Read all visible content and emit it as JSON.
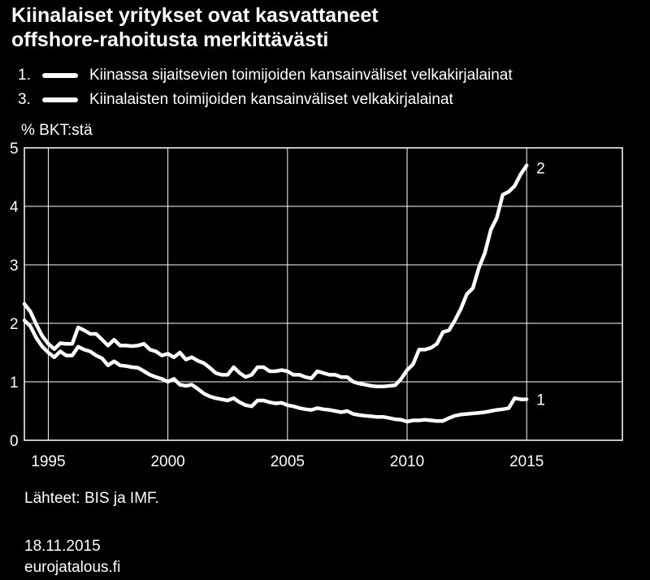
{
  "title_line1": "Kiinalaiset yritykset ovat kasvattaneet",
  "title_line2": "offshore-rahoitusta merkittävästi",
  "legend": [
    {
      "num": "1.",
      "label": "Kiinassa sijaitsevien toimijoiden kansainväliset velkakirjalainat"
    },
    {
      "num": "3.",
      "label": "Kiinalaisten toimijoiden kansainväliset velkakirjalainat"
    }
  ],
  "unit_label": "% BKT:stä",
  "source": "Lähteet: BIS ja IMF.",
  "date": "18.11.2015",
  "site": "eurojatalous.fi",
  "line_color": "#ffffff",
  "background_color": "#000000",
  "chart_data": {
    "type": "line",
    "title": "",
    "xlabel": "",
    "ylabel": "% BKT:stä",
    "xlim": [
      1994.0,
      2019.0
    ],
    "ylim": [
      0,
      5
    ],
    "xticks": [
      1995,
      2000,
      2005,
      2010,
      2015
    ],
    "yticks": [
      0,
      1,
      2,
      3,
      4,
      5
    ],
    "grid": true,
    "series": [
      {
        "name": "1",
        "x": [
          1994.0,
          1994.25,
          1994.5,
          1994.75,
          1995.0,
          1995.25,
          1995.5,
          1995.75,
          1996.0,
          1996.25,
          1996.5,
          1996.75,
          1997.0,
          1997.25,
          1997.5,
          1997.75,
          1998.0,
          1998.25,
          1998.5,
          1998.75,
          1999.0,
          1999.25,
          1999.5,
          1999.75,
          2000.0,
          2000.25,
          2000.5,
          2000.75,
          2001.0,
          2001.25,
          2001.5,
          2001.75,
          2002.0,
          2002.25,
          2002.5,
          2002.75,
          2003.0,
          2003.25,
          2003.5,
          2003.75,
          2004.0,
          2004.25,
          2004.5,
          2004.75,
          2005.0,
          2005.25,
          2005.5,
          2005.75,
          2006.0,
          2006.25,
          2006.5,
          2006.75,
          2007.0,
          2007.25,
          2007.5,
          2007.75,
          2008.0,
          2008.25,
          2008.5,
          2008.75,
          2009.0,
          2009.25,
          2009.5,
          2009.75,
          2010.0,
          2010.25,
          2010.5,
          2010.75,
          2011.0,
          2011.25,
          2011.5,
          2011.75,
          2012.0,
          2012.25,
          2012.5,
          2012.75,
          2013.0,
          2013.25,
          2013.5,
          2013.75,
          2014.0,
          2014.25,
          2014.5,
          2014.75,
          2015.0
        ],
        "values": [
          2.05,
          1.95,
          1.75,
          1.6,
          1.5,
          1.42,
          1.52,
          1.45,
          1.45,
          1.6,
          1.55,
          1.52,
          1.45,
          1.4,
          1.28,
          1.35,
          1.28,
          1.27,
          1.25,
          1.24,
          1.18,
          1.12,
          1.08,
          1.05,
          1.0,
          1.05,
          0.95,
          0.93,
          0.95,
          0.88,
          0.8,
          0.75,
          0.72,
          0.7,
          0.68,
          0.72,
          0.65,
          0.6,
          0.58,
          0.68,
          0.68,
          0.65,
          0.63,
          0.64,
          0.6,
          0.58,
          0.55,
          0.53,
          0.52,
          0.55,
          0.53,
          0.52,
          0.5,
          0.48,
          0.5,
          0.45,
          0.43,
          0.42,
          0.41,
          0.4,
          0.4,
          0.38,
          0.36,
          0.35,
          0.32,
          0.34,
          0.34,
          0.35,
          0.34,
          0.33,
          0.33,
          0.38,
          0.42,
          0.44,
          0.45,
          0.46,
          0.47,
          0.48,
          0.5,
          0.52,
          0.53,
          0.55,
          0.72,
          0.7,
          0.7
        ]
      },
      {
        "name": "2",
        "x": [
          1994.0,
          1994.25,
          1994.5,
          1994.75,
          1995.0,
          1995.25,
          1995.5,
          1995.75,
          1996.0,
          1996.25,
          1996.5,
          1996.75,
          1997.0,
          1997.25,
          1997.5,
          1997.75,
          1998.0,
          1998.25,
          1998.5,
          1998.75,
          1999.0,
          1999.25,
          1999.5,
          1999.75,
          2000.0,
          2000.25,
          2000.5,
          2000.75,
          2001.0,
          2001.25,
          2001.5,
          2001.75,
          2002.0,
          2002.25,
          2002.5,
          2002.75,
          2003.0,
          2003.25,
          2003.5,
          2003.75,
          2004.0,
          2004.25,
          2004.5,
          2004.75,
          2005.0,
          2005.25,
          2005.5,
          2005.75,
          2006.0,
          2006.25,
          2006.5,
          2006.75,
          2007.0,
          2007.25,
          2007.5,
          2007.75,
          2008.0,
          2008.25,
          2008.5,
          2008.75,
          2009.0,
          2009.25,
          2009.5,
          2009.75,
          2010.0,
          2010.25,
          2010.5,
          2010.75,
          2011.0,
          2011.25,
          2011.5,
          2011.75,
          2012.0,
          2012.25,
          2012.5,
          2012.75,
          2013.0,
          2013.25,
          2013.5,
          2013.75,
          2014.0,
          2014.25,
          2014.5,
          2014.75,
          2015.0
        ],
        "values": [
          2.33,
          2.2,
          1.98,
          1.78,
          1.65,
          1.56,
          1.66,
          1.65,
          1.65,
          1.93,
          1.88,
          1.82,
          1.82,
          1.72,
          1.62,
          1.72,
          1.62,
          1.62,
          1.61,
          1.62,
          1.65,
          1.55,
          1.52,
          1.45,
          1.48,
          1.42,
          1.5,
          1.38,
          1.42,
          1.36,
          1.32,
          1.24,
          1.15,
          1.12,
          1.12,
          1.25,
          1.15,
          1.08,
          1.12,
          1.25,
          1.25,
          1.18,
          1.18,
          1.2,
          1.18,
          1.12,
          1.12,
          1.08,
          1.06,
          1.18,
          1.15,
          1.12,
          1.12,
          1.08,
          1.08,
          1.0,
          0.97,
          0.95,
          0.93,
          0.92,
          0.92,
          0.93,
          0.94,
          1.05,
          1.2,
          1.3,
          1.55,
          1.55,
          1.58,
          1.65,
          1.85,
          1.88,
          2.05,
          2.25,
          2.5,
          2.6,
          2.95,
          3.2,
          3.6,
          3.8,
          4.2,
          4.25,
          4.35,
          4.55,
          4.7
        ]
      }
    ]
  }
}
